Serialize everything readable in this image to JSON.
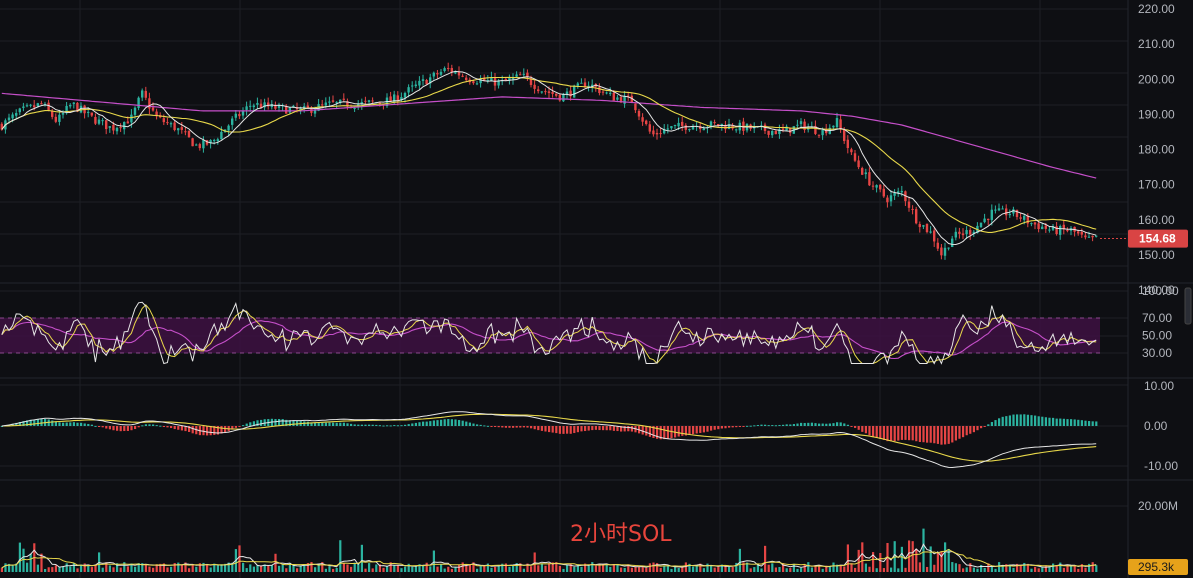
{
  "watermark": "2小时SOL",
  "colors": {
    "background": "#0e0f13",
    "grid": "#1d1f25",
    "up": "#2bb3a0",
    "down": "#e64545",
    "ma_white": "#e6e6e6",
    "ma_yellow": "#e8d84a",
    "ma_magenta": "#c54fc9",
    "rsi_band": "#3d1042",
    "price_badge": "#d94444",
    "volume_badge": "#e6a21a"
  },
  "chart_data": [
    {
      "type": "candlestick",
      "panel": "price",
      "y_ticks": [
        "220.00",
        "210.00",
        "200.00",
        "190.00",
        "180.00",
        "170.00",
        "160.00",
        "150.00",
        "140.00"
      ],
      "ylim": [
        136,
        222
      ],
      "last_price_label": "154.68",
      "close_anchors": [
        [
          0,
          187
        ],
        [
          20,
          191
        ],
        [
          40,
          193
        ],
        [
          55,
          188
        ],
        [
          70,
          193
        ],
        [
          90,
          189
        ],
        [
          110,
          186
        ],
        [
          130,
          189
        ],
        [
          140,
          196
        ],
        [
          155,
          189
        ],
        [
          175,
          186
        ],
        [
          195,
          181
        ],
        [
          210,
          182
        ],
        [
          230,
          188
        ],
        [
          250,
          193
        ],
        [
          270,
          192
        ],
        [
          300,
          191
        ],
        [
          330,
          193
        ],
        [
          360,
          193
        ],
        [
          390,
          194
        ],
        [
          420,
          199
        ],
        [
          445,
          203
        ],
        [
          470,
          200
        ],
        [
          500,
          199
        ],
        [
          520,
          201
        ],
        [
          540,
          197
        ],
        [
          560,
          195
        ],
        [
          585,
          199
        ],
        [
          610,
          195
        ],
        [
          630,
          194
        ],
        [
          650,
          184
        ],
        [
          665,
          186
        ],
        [
          690,
          187
        ],
        [
          720,
          187
        ],
        [
          750,
          186
        ],
        [
          780,
          185
        ],
        [
          800,
          187
        ],
        [
          820,
          185
        ],
        [
          835,
          188
        ],
        [
          850,
          178
        ],
        [
          870,
          170
        ],
        [
          885,
          166
        ],
        [
          900,
          168
        ],
        [
          915,
          160
        ],
        [
          930,
          156
        ],
        [
          940,
          150
        ],
        [
          950,
          155
        ],
        [
          970,
          157
        ],
        [
          990,
          162
        ],
        [
          1010,
          162
        ],
        [
          1030,
          159
        ],
        [
          1050,
          157
        ],
        [
          1070,
          157
        ],
        [
          1085,
          154
        ],
        [
          1100,
          155
        ]
      ],
      "ma_slow_anchors": [
        [
          0,
          196
        ],
        [
          100,
          193.5
        ],
        [
          200,
          191
        ],
        [
          300,
          191
        ],
        [
          400,
          193
        ],
        [
          500,
          195
        ],
        [
          600,
          194
        ],
        [
          700,
          192
        ],
        [
          800,
          191
        ],
        [
          850,
          189.5
        ],
        [
          900,
          187
        ],
        [
          950,
          183
        ],
        [
          1000,
          179
        ],
        [
          1050,
          175
        ],
        [
          1100,
          171.5
        ]
      ]
    },
    {
      "type": "line",
      "panel": "rsi",
      "y_ticks": [
        "100.00",
        "70.00",
        "50.00",
        "30.00"
      ],
      "ylim": [
        0,
        100
      ],
      "band": [
        30,
        70
      ]
    },
    {
      "type": "histogram",
      "panel": "macd",
      "y_ticks": [
        "10.00",
        "0.00",
        "-10.00"
      ],
      "ylim": [
        -13,
        13
      ]
    },
    {
      "type": "bar",
      "panel": "volume",
      "y_ticks": [
        "20.00M"
      ],
      "last_volume_label": "295.3k"
    }
  ]
}
